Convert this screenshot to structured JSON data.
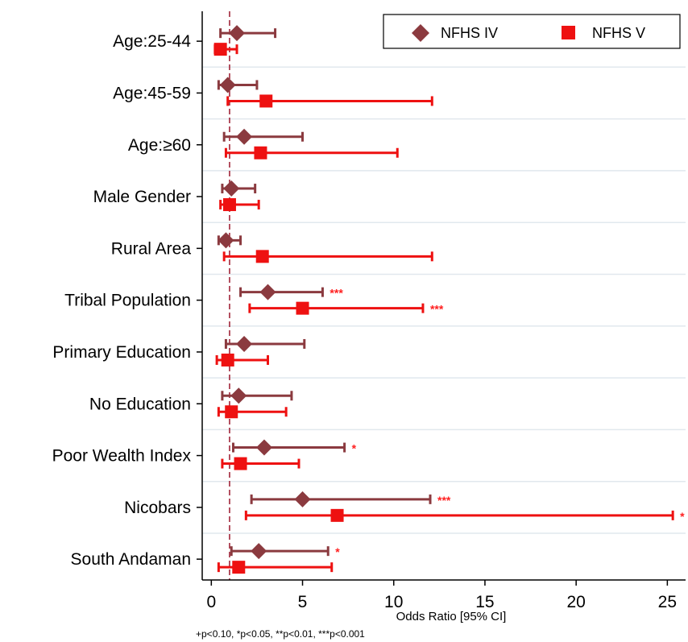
{
  "chart_data": {
    "type": "forest",
    "title": "",
    "xlabel": "Odds Ratio [95% CI]",
    "ylabel": "",
    "xlim": [
      -0.5,
      26
    ],
    "xticks": [
      0,
      5,
      10,
      15,
      20,
      25
    ],
    "reference_line": 1,
    "grid": "horizontal",
    "legend_position": "top-right",
    "footnote": "+p<0.10, *p<0.05, **p<0.01, ***p<0.001",
    "categories": [
      "Age:25-44",
      "Age:45-59",
      "Age:≥60",
      "Male Gender",
      "Rural Area",
      "Tribal Population",
      "Primary Education",
      "No Education",
      "Poor Wealth Index",
      "Nicobars",
      "South Andaman"
    ],
    "series": [
      {
        "name": "NFHS IV",
        "marker": "diamond",
        "color": "#8B3A3F",
        "or": [
          1.4,
          0.9,
          1.8,
          1.1,
          0.8,
          3.1,
          1.8,
          1.5,
          2.9,
          5.0,
          2.6
        ],
        "lower": [
          0.5,
          0.4,
          0.7,
          0.6,
          0.4,
          1.6,
          0.8,
          0.6,
          1.2,
          2.2,
          1.1
        ],
        "upper": [
          3.5,
          2.5,
          5.0,
          2.4,
          1.6,
          6.1,
          5.1,
          4.4,
          7.3,
          12.0,
          6.4
        ],
        "sig": [
          "",
          "",
          "",
          "",
          "",
          "***",
          "",
          "",
          "*",
          "***",
          "*"
        ]
      },
      {
        "name": "NFHS V",
        "marker": "square",
        "color": "#EE1111",
        "or": [
          0.5,
          3.0,
          2.7,
          1.0,
          2.8,
          5.0,
          0.9,
          1.1,
          1.6,
          6.9,
          1.5
        ],
        "lower": [
          0.2,
          0.9,
          0.8,
          0.5,
          0.7,
          2.1,
          0.3,
          0.4,
          0.6,
          1.9,
          0.4
        ],
        "upper": [
          1.4,
          12.1,
          10.2,
          2.6,
          12.1,
          11.6,
          3.1,
          4.1,
          4.8,
          25.3,
          6.6
        ],
        "sig": [
          "",
          "",
          "",
          "",
          "",
          "***",
          "",
          "",
          "",
          "*",
          ""
        ]
      }
    ]
  }
}
